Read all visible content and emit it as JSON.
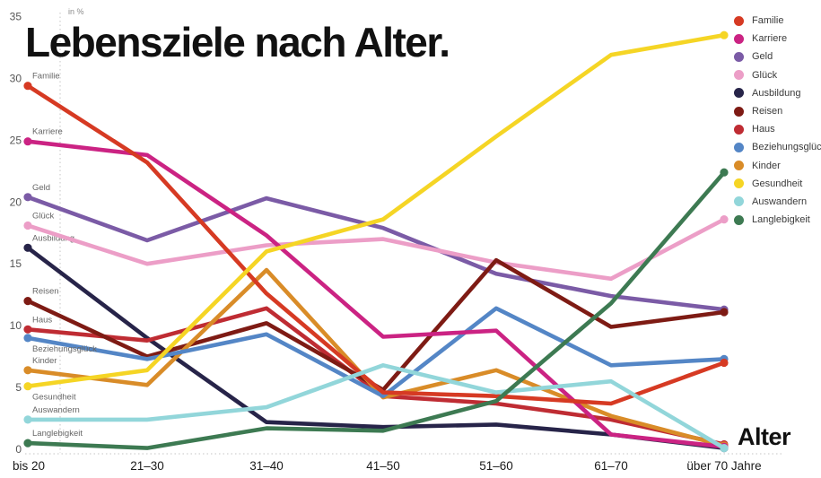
{
  "title": "Lebensziele nach Alter.",
  "y_axis_unit": "in %",
  "x_axis_title": "Alter",
  "chart_data": {
    "type": "line",
    "title": "Lebensziele nach Alter.",
    "xlabel": "Alter",
    "ylabel": "in %",
    "ylim": [
      0,
      35
    ],
    "y_ticks": [
      0,
      5,
      10,
      15,
      20,
      25,
      30,
      35
    ],
    "grid": "dotted y-axis line at left and dotted zero baseline only",
    "legend_position": "top-right",
    "categories": [
      "bis 20",
      "21–30",
      "31–40",
      "41–50",
      "51–60",
      "61–70",
      "über 70 Jahre"
    ],
    "series": [
      {
        "name": "Familie",
        "color": "#d63a23",
        "values": [
          29.4,
          23.2,
          12.6,
          4.6,
          4.3,
          3.7,
          7.0
        ]
      },
      {
        "name": "Karriere",
        "color": "#cb2383",
        "values": [
          24.9,
          23.8,
          17.3,
          9.1,
          9.6,
          1.2,
          0.2
        ]
      },
      {
        "name": "Geld",
        "color": "#7b5ba6",
        "values": [
          20.4,
          16.9,
          20.3,
          17.9,
          14.2,
          12.4,
          11.3
        ]
      },
      {
        "name": "Glück",
        "color": "#ec9ec7",
        "values": [
          18.1,
          15.0,
          16.5,
          17.0,
          15.1,
          13.8,
          18.6
        ]
      },
      {
        "name": "Ausbildung",
        "color": "#272449",
        "values": [
          16.3,
          9.0,
          2.2,
          1.8,
          2.0,
          1.2,
          0.1
        ]
      },
      {
        "name": "Reisen",
        "color": "#7e1b14",
        "values": [
          12.0,
          7.5,
          10.2,
          4.8,
          15.3,
          9.9,
          11.1
        ]
      },
      {
        "name": "Haus",
        "color": "#bf2c33",
        "values": [
          9.7,
          8.8,
          11.4,
          4.3,
          3.7,
          2.4,
          0.4
        ]
      },
      {
        "name": "Beziehungsglück",
        "color": "#5486c6",
        "values": [
          9.0,
          7.3,
          9.3,
          4.3,
          11.4,
          6.8,
          7.3
        ],
        "label_below": true
      },
      {
        "name": "Kinder",
        "color": "#d98c28",
        "values": [
          6.4,
          5.2,
          14.5,
          4.2,
          6.4,
          2.7,
          0.3
        ]
      },
      {
        "name": "Gesundheit",
        "color": "#f5d525",
        "values": [
          5.1,
          6.4,
          16.0,
          18.6,
          25.3,
          31.9,
          33.5
        ],
        "label_below": true
      },
      {
        "name": "Auswandern",
        "color": "#92d6da",
        "values": [
          2.4,
          2.4,
          3.4,
          6.8,
          4.6,
          5.5,
          0.1
        ]
      },
      {
        "name": "Langlebigkeit",
        "color": "#3d7a52",
        "values": [
          0.5,
          0.1,
          1.7,
          1.5,
          3.9,
          11.8,
          22.4
        ]
      }
    ],
    "draw_order": [
      "Ausbildung",
      "Geld",
      "Glück",
      "Haus",
      "Reisen",
      "Kinder",
      "Beziehungsglück",
      "Karriere",
      "Familie",
      "Auswandern",
      "Langlebigkeit",
      "Gesundheit"
    ]
  }
}
